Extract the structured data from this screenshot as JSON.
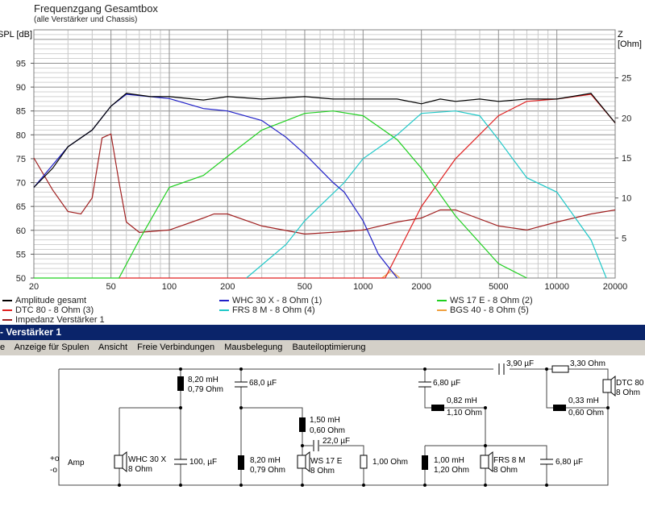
{
  "chart": {
    "title": "Frequenzgang Gesamtbox",
    "subtitle": "(alle Verstärker und Chassis)",
    "left_axis_label": "SPL [dB]",
    "right_axis_label": "Z [Ohm]"
  },
  "chart_data": {
    "type": "line",
    "x_scale": "log",
    "xlim": [
      20,
      20000
    ],
    "ylim": [
      50,
      102
    ],
    "y2lim": [
      0,
      31
    ],
    "x_ticks": [
      "20",
      "50",
      "100",
      "200",
      "500",
      "1000",
      "2000",
      "5000",
      "10000",
      "20000"
    ],
    "y_ticks": [
      "50",
      "55",
      "60",
      "65",
      "70",
      "75",
      "80",
      "85",
      "90",
      "95"
    ],
    "y2_ticks": [
      "5",
      "10",
      "15",
      "20",
      "25"
    ],
    "grid": true,
    "series": [
      {
        "name": "Amplitude gesamt",
        "color": "#000000",
        "axis": "left",
        "points": [
          [
            20,
            69
          ],
          [
            25,
            73
          ],
          [
            30,
            77.5
          ],
          [
            40,
            81
          ],
          [
            50,
            86
          ],
          [
            60,
            88.7
          ],
          [
            80,
            88
          ],
          [
            100,
            88
          ],
          [
            150,
            87.3
          ],
          [
            200,
            88
          ],
          [
            300,
            87.5
          ],
          [
            500,
            88
          ],
          [
            700,
            87.5
          ],
          [
            1000,
            87.5
          ],
          [
            1500,
            87.5
          ],
          [
            2000,
            86.5
          ],
          [
            2500,
            87.5
          ],
          [
            3000,
            87
          ],
          [
            4000,
            87.5
          ],
          [
            5000,
            87
          ],
          [
            7000,
            87.5
          ],
          [
            10000,
            87.5
          ],
          [
            15000,
            88.7
          ],
          [
            20000,
            82.5
          ]
        ]
      },
      {
        "name": "WHC 30 X - 8 Ohm (1)",
        "color": "#2020c8",
        "axis": "left",
        "points": [
          [
            20,
            69
          ],
          [
            30,
            77.5
          ],
          [
            40,
            81
          ],
          [
            50,
            86
          ],
          [
            60,
            88.5
          ],
          [
            100,
            87.6
          ],
          [
            150,
            85.5
          ],
          [
            200,
            85
          ],
          [
            300,
            83
          ],
          [
            400,
            79.5
          ],
          [
            500,
            76
          ],
          [
            700,
            70
          ],
          [
            800,
            68
          ],
          [
            1000,
            62
          ],
          [
            1200,
            55
          ],
          [
            1500,
            50
          ]
        ]
      },
      {
        "name": "WS 17 E - 8 Ohm   (2)",
        "color": "#20d020",
        "axis": "left",
        "points": [
          [
            20,
            50
          ],
          [
            55,
            50
          ],
          [
            70,
            58
          ],
          [
            100,
            69
          ],
          [
            150,
            71.5
          ],
          [
            200,
            75.5
          ],
          [
            300,
            81
          ],
          [
            500,
            84.5
          ],
          [
            700,
            85
          ],
          [
            1000,
            84
          ],
          [
            1500,
            79
          ],
          [
            2000,
            73
          ],
          [
            3000,
            63
          ],
          [
            5000,
            53
          ],
          [
            7000,
            50
          ]
        ]
      },
      {
        "name": "DTC 80 - 8 Ohm (3)",
        "color": "#e02020",
        "axis": "left",
        "points": [
          [
            55,
            50
          ],
          [
            1300,
            50
          ],
          [
            2000,
            65
          ],
          [
            3000,
            75
          ],
          [
            5000,
            84
          ],
          [
            7000,
            87
          ],
          [
            10000,
            87.5
          ],
          [
            15000,
            88.5
          ],
          [
            20000,
            82.5
          ]
        ]
      },
      {
        "name": "FRS 8 M - 8 Ohm (4)",
        "color": "#20c8c8",
        "axis": "left",
        "points": [
          [
            250,
            50
          ],
          [
            400,
            57
          ],
          [
            500,
            62
          ],
          [
            800,
            70
          ],
          [
            1000,
            75
          ],
          [
            1500,
            80
          ],
          [
            2000,
            84.5
          ],
          [
            3000,
            85
          ],
          [
            4000,
            84
          ],
          [
            5000,
            79
          ],
          [
            7000,
            71
          ],
          [
            10000,
            68
          ],
          [
            15000,
            58
          ],
          [
            18000,
            50
          ]
        ]
      },
      {
        "name": "BGS 40 - 8 Ohm (5)",
        "color": "#f0a040",
        "axis": "left",
        "points": [
          [
            1250,
            50
          ],
          [
            1400,
            51.5
          ],
          [
            1550,
            50
          ]
        ]
      },
      {
        "name": "Impedanz Verstärker 1",
        "color": "#a02020",
        "axis": "right",
        "points": [
          [
            20,
            15
          ],
          [
            25,
            11
          ],
          [
            30,
            8.3
          ],
          [
            35,
            8
          ],
          [
            40,
            10
          ],
          [
            45,
            17.5
          ],
          [
            50,
            18
          ],
          [
            55,
            12
          ],
          [
            60,
            7
          ],
          [
            70,
            5.7
          ],
          [
            100,
            6
          ],
          [
            150,
            7.5
          ],
          [
            170,
            8
          ],
          [
            200,
            8
          ],
          [
            300,
            6.5
          ],
          [
            500,
            5.5
          ],
          [
            800,
            5.8
          ],
          [
            1000,
            6
          ],
          [
            1500,
            7
          ],
          [
            2000,
            7.5
          ],
          [
            2500,
            8.5
          ],
          [
            3000,
            8.5
          ],
          [
            5000,
            6.5
          ],
          [
            7000,
            6
          ],
          [
            10000,
            7
          ],
          [
            15000,
            8
          ],
          [
            20000,
            8.5
          ]
        ]
      }
    ]
  },
  "window": {
    "title": "- Verstärker 1"
  },
  "menu": [
    "e",
    "Anzeige für Spulen",
    "Ansicht",
    "Freie Verbindungen",
    "Mausbelegung",
    "Bauteiloptimierung"
  ],
  "circuit": {
    "amp": {
      "plus": "+o",
      "minus": "-o",
      "label": "Amp"
    },
    "whc": {
      "name": "WHC 30 X",
      "imp": "8 Ohm"
    },
    "l1": {
      "val": "8,20 mH",
      "r": "0,79 Ohm"
    },
    "c1": {
      "val": "100, µF"
    },
    "c2": {
      "val": "68,0 µF"
    },
    "l2": {
      "val": "8,20 mH",
      "r": "0,79 Ohm"
    },
    "l3": {
      "val": "1,50 mH",
      "r": "0,60 Ohm"
    },
    "c3": {
      "val": "22,0 µF"
    },
    "ws": {
      "name": "WS 17 E",
      "imp": "8 Ohm"
    },
    "r1": {
      "val": "1,00 Ohm"
    },
    "c4": {
      "val": "6,80 µF"
    },
    "l4": {
      "val": "0,82 mH",
      "r": "1,10 Ohm"
    },
    "l5": {
      "val": "1,00 mH",
      "r": "1,20 Ohm"
    },
    "frs": {
      "name": "FRS 8 M",
      "imp": "8 Ohm"
    },
    "c5": {
      "val": "6,80 µF"
    },
    "c6": {
      "val": "3,90 µF"
    },
    "r2": {
      "val": "3,30 Ohm"
    },
    "dtc": {
      "name": "DTC 80",
      "imp": "8 Ohm"
    },
    "l6": {
      "val": "0,33 mH",
      "r": "0,60 Ohm"
    }
  }
}
